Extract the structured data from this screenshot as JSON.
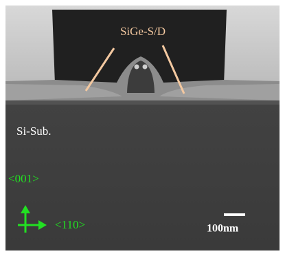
{
  "labels": {
    "sige": "SiGe-S/D",
    "substrate": "Si-Sub.",
    "direction_001": "<001>",
    "direction_110": "<110>",
    "scale": "100nm"
  }
}
